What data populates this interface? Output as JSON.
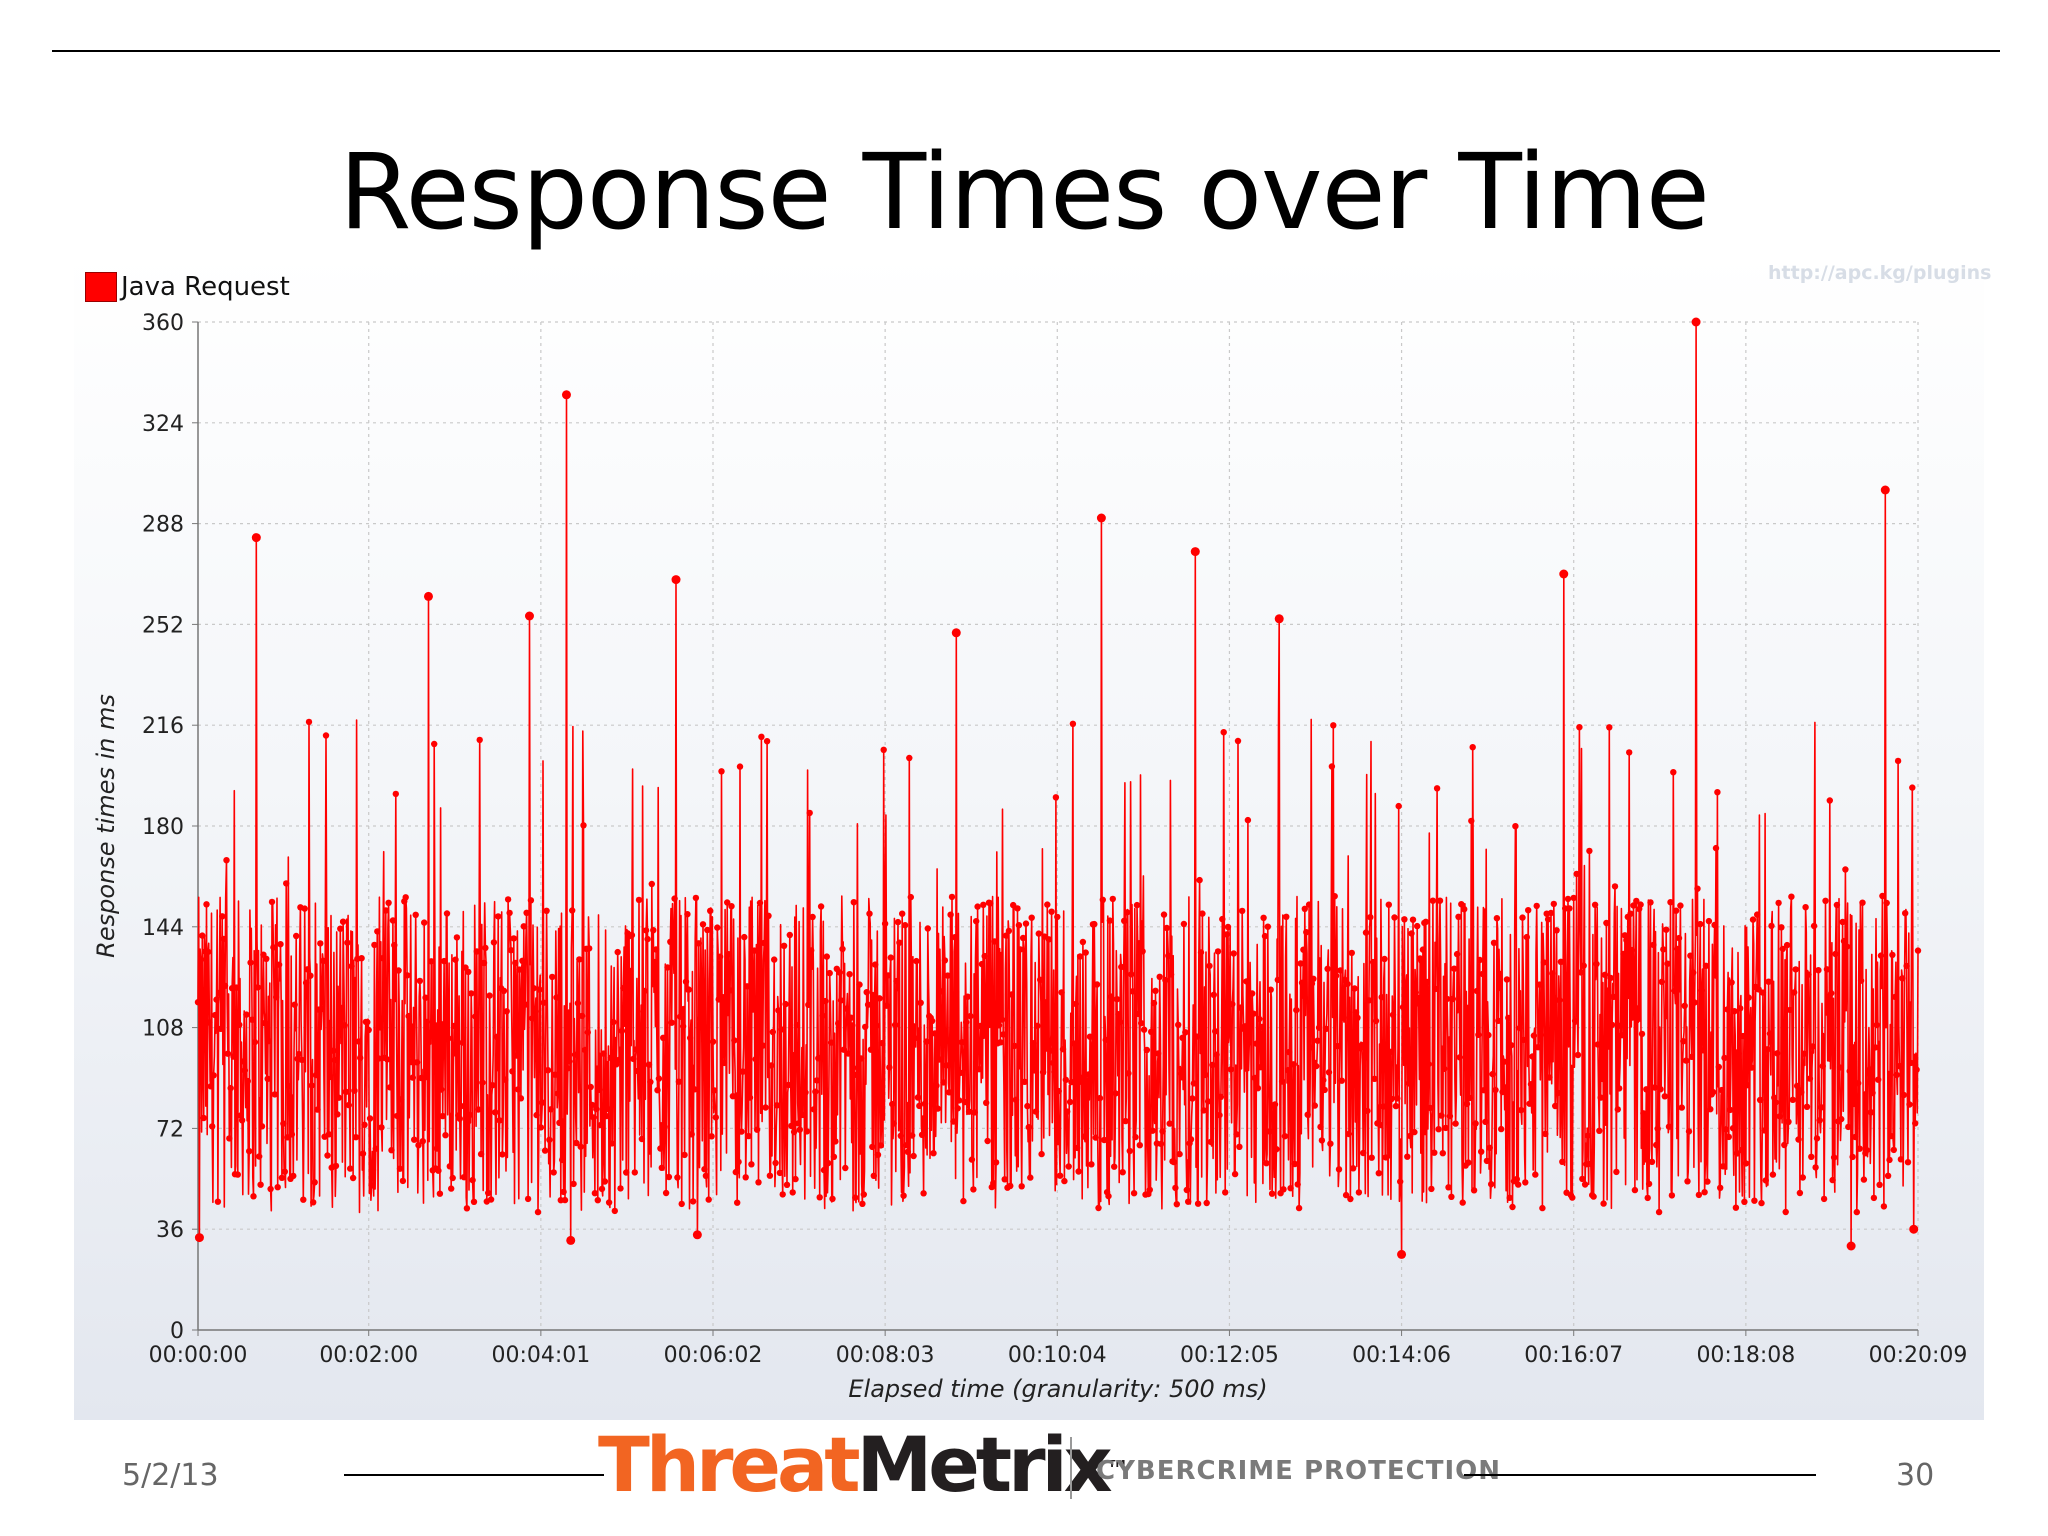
{
  "slide": {
    "title": "Response Times over Time",
    "date": "5/2/13",
    "page_number": "30"
  },
  "logo": {
    "part1": "Threat",
    "part2": "Metrix",
    "tm": "TM",
    "tagline": "CYBERCRIME PROTECTION"
  },
  "watermark": "http://apc.kg/plugins",
  "colors": {
    "series": "#ff0000",
    "logo_orange": "#f26522",
    "logo_dark": "#231f20"
  },
  "chart_data": {
    "type": "line",
    "title": "",
    "xlabel": "Elapsed time (granularity: 500 ms)",
    "ylabel": "Response times in ms",
    "ylim": [
      0,
      360
    ],
    "yticks": [
      0,
      36,
      72,
      108,
      144,
      180,
      216,
      252,
      288,
      324,
      360
    ],
    "xlim": [
      "00:00:00",
      "00:20:09"
    ],
    "xticks": [
      "00:00:00",
      "00:02:00",
      "00:04:01",
      "00:06:02",
      "00:08:03",
      "00:10:04",
      "00:12:05",
      "00:14:06",
      "00:16:07",
      "00:18:08",
      "00:20:09"
    ],
    "grid": true,
    "legend_position": "top-left",
    "series": [
      {
        "name": "Java Request",
        "color": "#ff0000",
        "peaks": [
          {
            "t": "00:00:41",
            "v": 283
          },
          {
            "t": "00:02:42",
            "v": 262
          },
          {
            "t": "00:03:53",
            "v": 255
          },
          {
            "t": "00:04:19",
            "v": 334
          },
          {
            "t": "00:05:36",
            "v": 268
          },
          {
            "t": "00:08:53",
            "v": 249
          },
          {
            "t": "00:10:35",
            "v": 290
          },
          {
            "t": "00:11:41",
            "v": 278
          },
          {
            "t": "00:12:40",
            "v": 254
          },
          {
            "t": "00:16:00",
            "v": 270
          },
          {
            "t": "00:17:33",
            "v": 360
          },
          {
            "t": "00:19:46",
            "v": 300
          }
        ],
        "dips": [
          {
            "t": "00:00:01",
            "v": 33
          },
          {
            "t": "00:04:22",
            "v": 32
          },
          {
            "t": "00:05:51",
            "v": 34
          },
          {
            "t": "00:14:06",
            "v": 27
          },
          {
            "t": "00:19:22",
            "v": 30
          },
          {
            "t": "00:20:06",
            "v": 36
          }
        ],
        "typical_range": [
          50,
          150
        ],
        "approx_mean": 100
      }
    ]
  }
}
